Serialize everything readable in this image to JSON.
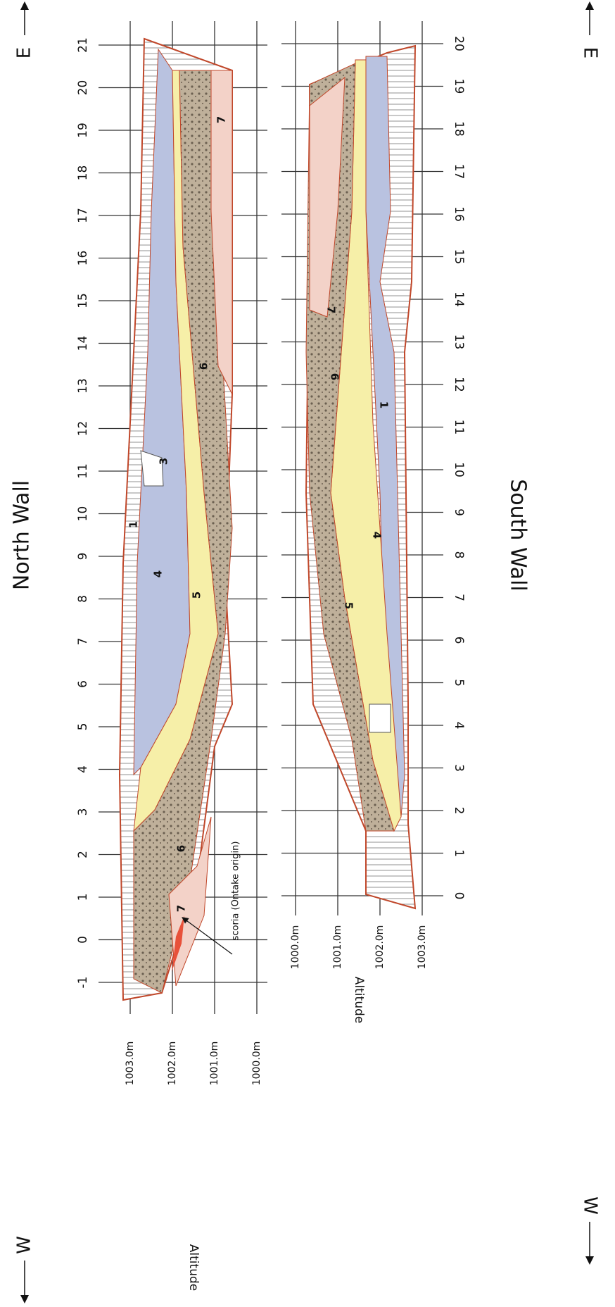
{
  "north_wall": {
    "title": "North Wall",
    "east": "E",
    "west": "W",
    "distance_labels": [
      -1,
      0,
      1,
      2,
      3,
      4,
      5,
      6,
      7,
      8,
      9,
      10,
      11,
      12,
      13,
      14,
      15,
      16,
      17,
      18,
      19,
      20,
      21
    ],
    "altitude_labels": [
      "1003.0m",
      "1002.0m",
      "1001.0m",
      "1000.0m"
    ],
    "altitude_title": "Altitude",
    "layer_labels": [
      "7",
      "6",
      "3",
      "1",
      "4",
      "5",
      "6",
      "7"
    ],
    "annotation": "scoria (Ontake origin)"
  },
  "south_wall": {
    "title": "South Wall",
    "east": "E",
    "west": "W",
    "distance_labels": [
      0,
      1,
      2,
      3,
      4,
      5,
      6,
      7,
      8,
      9,
      10,
      11,
      12,
      13,
      14,
      15,
      16,
      17,
      18,
      19,
      20
    ],
    "altitude_labels": [
      "1000.0m",
      "1001.0m",
      "1002.0m",
      "1003.0m"
    ],
    "altitude_title": "Altitude",
    "layer_labels": [
      "7",
      "6",
      "1",
      "4",
      "5"
    ]
  }
}
